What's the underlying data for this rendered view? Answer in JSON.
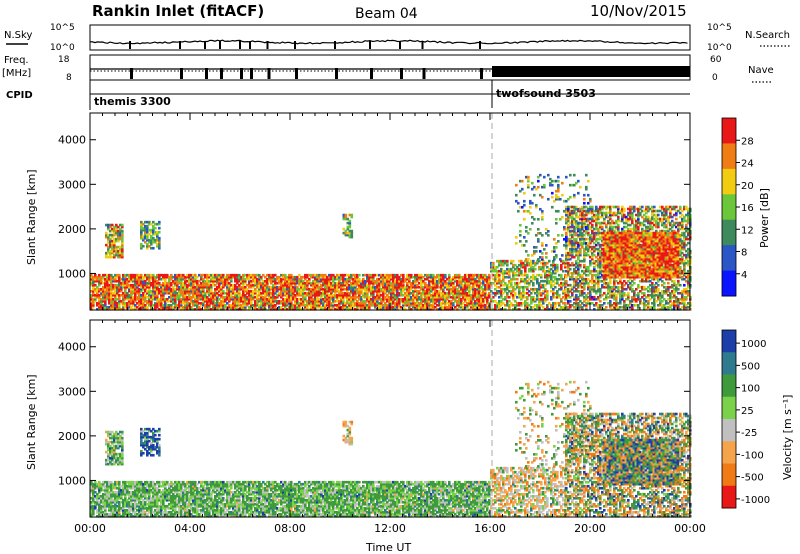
{
  "header": {
    "station": "Rankin Inlet (fitACF)",
    "beam": "Beam 04",
    "date": "10/Nov/2015"
  },
  "left_labels": {
    "nsky": "N.Sky",
    "nsky_tick_top": "10^5",
    "nsky_tick_bottom": "10^0",
    "freq_line1": "Freq.",
    "freq_line2": "[MHz]",
    "freq_tick_top": "18",
    "freq_tick_bottom": "8",
    "cpid": "CPID"
  },
  "right_labels": {
    "nsearch": "N.Search",
    "nsearch_tick_top": "10^5",
    "nsearch_tick_bottom": "10^0",
    "nave": "Nave",
    "nave_tick_top": "60",
    "nave_tick_bottom": "0"
  },
  "cpid_modes": [
    {
      "label": "themis 3300",
      "start_hour": 0.0
    },
    {
      "label": "twofsound 3503",
      "start_hour": 16.0
    }
  ],
  "chart_data": [
    {
      "type": "heatmap",
      "quantity": "Power",
      "ylabel": "Slant Range [km]",
      "ylim": [
        180,
        4600
      ],
      "yticks": [
        1000,
        2000,
        3000,
        4000
      ],
      "colorbar_label": "Power [dB]",
      "colorbar_ticks": [
        "4",
        "8",
        "12",
        "16",
        "20",
        "24",
        "28"
      ],
      "colorbar_colors": [
        "#0a14ff",
        "#2a56c6",
        "#3d8a5c",
        "#6cc63a",
        "#f2cc10",
        "#f07c14",
        "#e81818"
      ]
    },
    {
      "type": "heatmap",
      "quantity": "Velocity",
      "xlabel": "Time UT",
      "ylabel": "Slant Range [km]",
      "ylim": [
        180,
        4600
      ],
      "yticks": [
        1000,
        2000,
        3000,
        4000
      ],
      "xticks": [
        "00:00",
        "04:00",
        "08:00",
        "12:00",
        "16:00",
        "20:00",
        "00:00"
      ],
      "colorbar_label": "Velocity [m s⁻¹]",
      "colorbar_ticks": [
        "1000",
        "500",
        "100",
        "25",
        "-25",
        "-100",
        "-500",
        "-1000"
      ],
      "colorbar_colors": [
        "#1c3ea8",
        "#2e7a8e",
        "#3f9a3c",
        "#7ad24a",
        "#c0c0c0",
        "#f5a44c",
        "#f07a14",
        "#e81818"
      ]
    }
  ]
}
